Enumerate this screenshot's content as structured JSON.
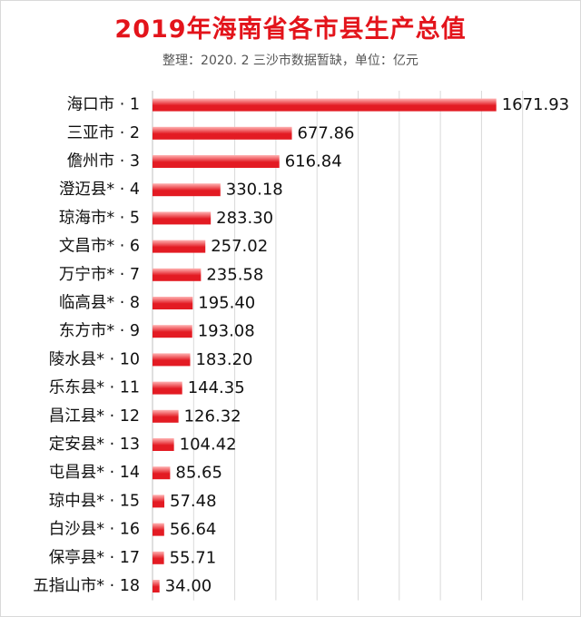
{
  "title": "2019年海南省各市县生产总值",
  "subtitle": "整理：2020. 2    三沙市数据暂缺，单位：亿元",
  "colors": {
    "title": "#e3141b",
    "bar_dark": "#e31b23",
    "bar_light": "#ffb3b3"
  },
  "chart_data": {
    "type": "bar",
    "orientation": "horizontal",
    "title": "2019年海南省各市县生产总值",
    "subtitle": "整理：2020. 2    三沙市数据暂缺，单位：亿元",
    "categories": [
      "海口市 · 1",
      "三亚市 · 2",
      "儋州市 · 3",
      "澄迈县* · 4",
      "琼海市* · 5",
      "文昌市* · 6",
      "万宁市* · 7",
      "临高县* · 8",
      "东方市* · 9",
      "陵水县* · 10",
      "乐东县* · 11",
      "昌江县* · 12",
      "定安县* · 13",
      "屯昌县* · 14",
      "琼中县* · 15",
      "白沙县* · 16",
      "保亭县* · 17",
      "五指山市* · 18"
    ],
    "values": [
      1671.93,
      677.86,
      616.84,
      330.18,
      283.3,
      257.02,
      235.58,
      195.4,
      193.08,
      183.2,
      144.35,
      126.32,
      104.42,
      85.65,
      57.48,
      56.64,
      55.71,
      34.0
    ],
    "value_labels": [
      "1671.93",
      "677.86",
      "616.84",
      "330.18",
      "283.30",
      "257.02",
      "235.58",
      "195.40",
      "193.08",
      "183.20",
      "144.35",
      "126.32",
      "104.42",
      "85.65",
      "57.48",
      "56.64",
      "55.71",
      "34.00"
    ],
    "xlim": [
      0,
      1800
    ],
    "grid": true,
    "xlabel": "",
    "ylabel": ""
  }
}
